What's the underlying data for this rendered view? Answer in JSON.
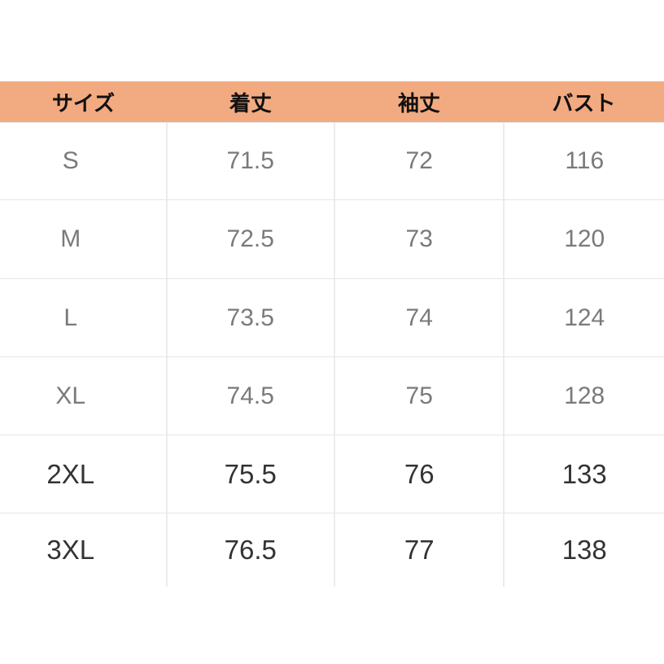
{
  "headers": [
    "サイズ",
    "着丈",
    "袖丈",
    "バスト"
  ],
  "rows": [
    [
      "S",
      "71.5",
      "72",
      "116"
    ],
    [
      "M",
      "72.5",
      "73",
      "120"
    ],
    [
      "L",
      "73.5",
      "74",
      "124"
    ],
    [
      "XL",
      "74.5",
      "75",
      "128"
    ],
    [
      "2XL",
      "75.5",
      "76",
      "133"
    ],
    [
      "3XL",
      "76.5",
      "77",
      "138"
    ]
  ],
  "colors": {
    "header_bg": "#f2aa80",
    "grid": "#e6e6e6"
  }
}
